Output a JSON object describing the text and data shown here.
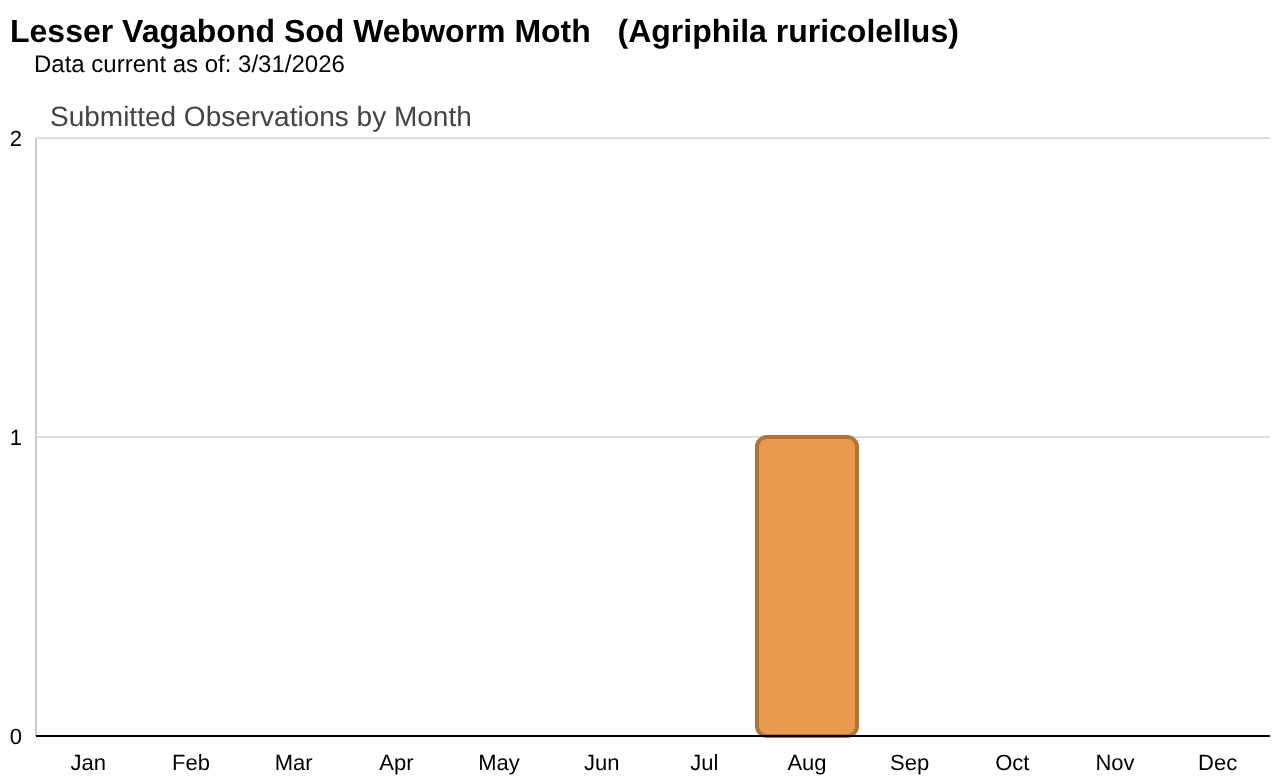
{
  "chart_data": {
    "type": "bar",
    "title": "Lesser Vagabond Sod Webworm Moth   (Agriphila ruricolellus)",
    "subtitle": "Data current as of: 3/31/2026",
    "annotations": [
      "Submitted Observations by Month"
    ],
    "categories": [
      "Jan",
      "Feb",
      "Mar",
      "Apr",
      "May",
      "Jun",
      "Jul",
      "Aug",
      "Sep",
      "Oct",
      "Nov",
      "Dec"
    ],
    "values": [
      0,
      0,
      0,
      0,
      0,
      0,
      0,
      1,
      0,
      0,
      0,
      0
    ],
    "color": "#e99a4c",
    "ylim": [
      0,
      2
    ],
    "yticks": [
      0,
      1,
      2
    ],
    "grid": "y"
  }
}
